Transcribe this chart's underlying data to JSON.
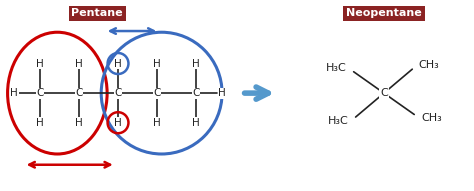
{
  "bg_color": "#ffffff",
  "pentane_label": "Pentane",
  "neopentane_label": "Neopentane",
  "label_bg": "#8B2323",
  "label_text_color": "#ffffff",
  "red_color": "#cc0000",
  "blue_color": "#3a6bbf",
  "arrow_color": "#5599cc",
  "bond_color": "#222222",
  "figsize": [
    4.74,
    1.91
  ],
  "dpi": 100,
  "xlim": [
    0,
    10
  ],
  "ylim": [
    0,
    4
  ]
}
